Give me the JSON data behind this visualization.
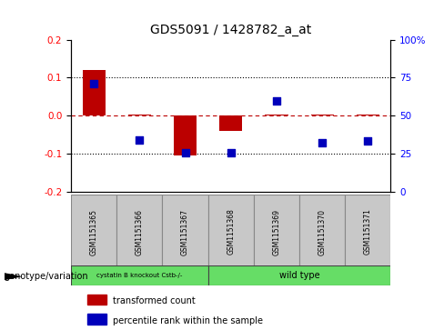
{
  "title": "GDS5091 / 1428782_a_at",
  "samples": [
    "GSM1151365",
    "GSM1151366",
    "GSM1151367",
    "GSM1151368",
    "GSM1151369",
    "GSM1151370",
    "GSM1151371"
  ],
  "red_values": [
    0.12,
    0.003,
    -0.105,
    -0.04,
    0.003,
    0.003,
    0.003
  ],
  "blue_values": [
    0.085,
    -0.065,
    -0.098,
    -0.098,
    0.038,
    -0.072,
    -0.068
  ],
  "ylim_left": [
    -0.2,
    0.2
  ],
  "ylim_right": [
    0,
    100
  ],
  "yticks_left": [
    -0.2,
    -0.1,
    0.0,
    0.1,
    0.2
  ],
  "yticks_right": [
    0,
    25,
    50,
    75,
    100
  ],
  "hlines_dotted": [
    0.1,
    -0.1
  ],
  "hline_dashed_val": 0.0,
  "bar_width": 0.5,
  "dot_size": 40,
  "red_color": "#BB0000",
  "blue_color": "#0000BB",
  "legend_red_label": "transformed count",
  "legend_blue_label": "percentile rank within the sample",
  "genotype_label": "genotype/variation",
  "sample_box_color": "#C8C8C8",
  "green_color": "#66DD66",
  "group1_label": "cystatin B knockout Cstb-/-",
  "group2_label": "wild type",
  "fig_width": 4.88,
  "fig_height": 3.63
}
